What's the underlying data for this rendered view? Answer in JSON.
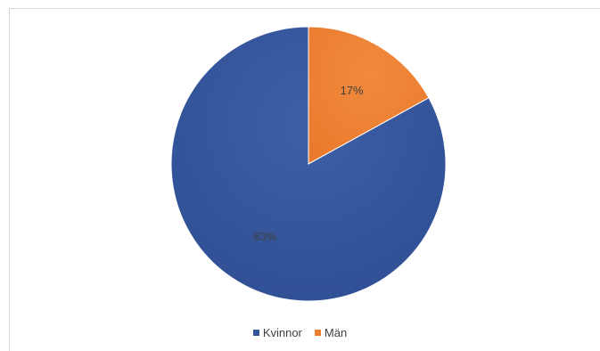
{
  "chart_data": {
    "type": "pie",
    "title": "",
    "categories": [
      "Kvinnor",
      "Män"
    ],
    "values": [
      83,
      17
    ],
    "labels": [
      "83%",
      "17%"
    ],
    "colors": [
      "#34549c",
      "#ed7d31"
    ],
    "legend_position": "bottom",
    "start_angle_deg": 0,
    "direction": "clockwise"
  },
  "legend": {
    "items": [
      {
        "label": "Kvinnor",
        "color": "#34549c"
      },
      {
        "label": "Män",
        "color": "#ed7d31"
      }
    ]
  }
}
